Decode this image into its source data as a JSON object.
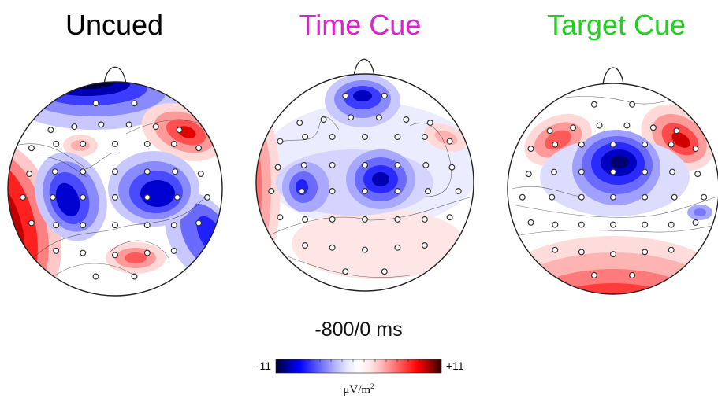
{
  "conditions": [
    {
      "id": "uncued",
      "title": "Uncued",
      "title_color": "#000000"
    },
    {
      "id": "time",
      "title": "Time Cue",
      "title_color": "#e020d0"
    },
    {
      "id": "target",
      "title": "Target Cue",
      "title_color": "#22d022"
    }
  ],
  "time_window": "-800/0 ms",
  "colorbar": {
    "min_label": "-11",
    "max_label": "+11",
    "unit_prefix": "μV/m",
    "unit_exponent": "2",
    "colors": [
      "#000030",
      "#0000a0",
      "#0000ff",
      "#3c3cff",
      "#7878ff",
      "#b4b4ff",
      "#e6e6ff",
      "#ffffff",
      "#ffe6e6",
      "#ffb4b4",
      "#ff7878",
      "#ff3c3c",
      "#ff0000",
      "#a00000",
      "#300000"
    ]
  },
  "icons": [
    "head-outline-icon",
    "nose-icon",
    "electrode-marker-icon"
  ]
}
